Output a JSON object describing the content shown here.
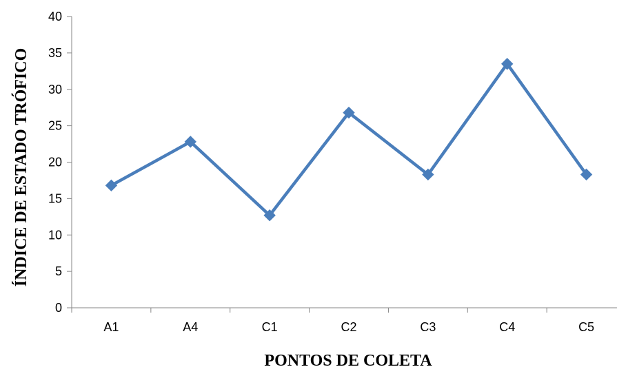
{
  "chart_data": {
    "type": "line",
    "categories": [
      "A1",
      "A4",
      "C1",
      "C2",
      "C3",
      "C4",
      "C5"
    ],
    "series": [
      {
        "values": [
          16.8,
          22.8,
          12.7,
          26.8,
          18.3,
          33.5,
          18.3
        ]
      }
    ],
    "xlabel": "PONTOS DE COLETA",
    "ylabel": "ÍNDICE DE ESTADO TRÓFICO",
    "ylim": [
      0,
      40
    ],
    "yticks": [
      "0",
      "5",
      "10",
      "15",
      "20",
      "25",
      "30",
      "35",
      "40"
    ],
    "grid": false,
    "legend": "none",
    "marker": "diamond",
    "line_color": "#4a7ebb",
    "marker_color": "#4a7ebb",
    "axis_color": "#868686"
  }
}
